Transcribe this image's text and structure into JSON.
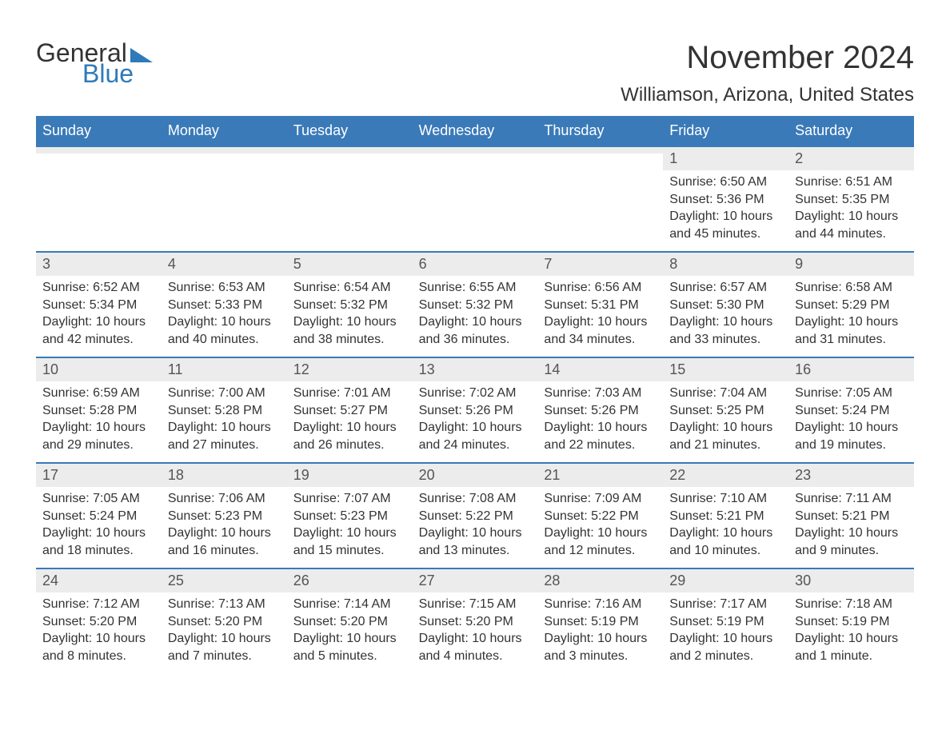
{
  "logo": {
    "word1": "General",
    "word2": "Blue"
  },
  "title": "November 2024",
  "location": "Williamson, Arizona, United States",
  "colors": {
    "header_bg": "#3a7ab8",
    "header_text": "#ffffff",
    "strip_bg": "#ececec",
    "text": "#333333",
    "logo_blue": "#2f7ab8"
  },
  "day_names": [
    "Sunday",
    "Monday",
    "Tuesday",
    "Wednesday",
    "Thursday",
    "Friday",
    "Saturday"
  ],
  "weeks": [
    [
      null,
      null,
      null,
      null,
      null,
      {
        "n": "1",
        "sunrise": "Sunrise: 6:50 AM",
        "sunset": "Sunset: 5:36 PM",
        "daylight": "Daylight: 10 hours and 45 minutes."
      },
      {
        "n": "2",
        "sunrise": "Sunrise: 6:51 AM",
        "sunset": "Sunset: 5:35 PM",
        "daylight": "Daylight: 10 hours and 44 minutes."
      }
    ],
    [
      {
        "n": "3",
        "sunrise": "Sunrise: 6:52 AM",
        "sunset": "Sunset: 5:34 PM",
        "daylight": "Daylight: 10 hours and 42 minutes."
      },
      {
        "n": "4",
        "sunrise": "Sunrise: 6:53 AM",
        "sunset": "Sunset: 5:33 PM",
        "daylight": "Daylight: 10 hours and 40 minutes."
      },
      {
        "n": "5",
        "sunrise": "Sunrise: 6:54 AM",
        "sunset": "Sunset: 5:32 PM",
        "daylight": "Daylight: 10 hours and 38 minutes."
      },
      {
        "n": "6",
        "sunrise": "Sunrise: 6:55 AM",
        "sunset": "Sunset: 5:32 PM",
        "daylight": "Daylight: 10 hours and 36 minutes."
      },
      {
        "n": "7",
        "sunrise": "Sunrise: 6:56 AM",
        "sunset": "Sunset: 5:31 PM",
        "daylight": "Daylight: 10 hours and 34 minutes."
      },
      {
        "n": "8",
        "sunrise": "Sunrise: 6:57 AM",
        "sunset": "Sunset: 5:30 PM",
        "daylight": "Daylight: 10 hours and 33 minutes."
      },
      {
        "n": "9",
        "sunrise": "Sunrise: 6:58 AM",
        "sunset": "Sunset: 5:29 PM",
        "daylight": "Daylight: 10 hours and 31 minutes."
      }
    ],
    [
      {
        "n": "10",
        "sunrise": "Sunrise: 6:59 AM",
        "sunset": "Sunset: 5:28 PM",
        "daylight": "Daylight: 10 hours and 29 minutes."
      },
      {
        "n": "11",
        "sunrise": "Sunrise: 7:00 AM",
        "sunset": "Sunset: 5:28 PM",
        "daylight": "Daylight: 10 hours and 27 minutes."
      },
      {
        "n": "12",
        "sunrise": "Sunrise: 7:01 AM",
        "sunset": "Sunset: 5:27 PM",
        "daylight": "Daylight: 10 hours and 26 minutes."
      },
      {
        "n": "13",
        "sunrise": "Sunrise: 7:02 AM",
        "sunset": "Sunset: 5:26 PM",
        "daylight": "Daylight: 10 hours and 24 minutes."
      },
      {
        "n": "14",
        "sunrise": "Sunrise: 7:03 AM",
        "sunset": "Sunset: 5:26 PM",
        "daylight": "Daylight: 10 hours and 22 minutes."
      },
      {
        "n": "15",
        "sunrise": "Sunrise: 7:04 AM",
        "sunset": "Sunset: 5:25 PM",
        "daylight": "Daylight: 10 hours and 21 minutes."
      },
      {
        "n": "16",
        "sunrise": "Sunrise: 7:05 AM",
        "sunset": "Sunset: 5:24 PM",
        "daylight": "Daylight: 10 hours and 19 minutes."
      }
    ],
    [
      {
        "n": "17",
        "sunrise": "Sunrise: 7:05 AM",
        "sunset": "Sunset: 5:24 PM",
        "daylight": "Daylight: 10 hours and 18 minutes."
      },
      {
        "n": "18",
        "sunrise": "Sunrise: 7:06 AM",
        "sunset": "Sunset: 5:23 PM",
        "daylight": "Daylight: 10 hours and 16 minutes."
      },
      {
        "n": "19",
        "sunrise": "Sunrise: 7:07 AM",
        "sunset": "Sunset: 5:23 PM",
        "daylight": "Daylight: 10 hours and 15 minutes."
      },
      {
        "n": "20",
        "sunrise": "Sunrise: 7:08 AM",
        "sunset": "Sunset: 5:22 PM",
        "daylight": "Daylight: 10 hours and 13 minutes."
      },
      {
        "n": "21",
        "sunrise": "Sunrise: 7:09 AM",
        "sunset": "Sunset: 5:22 PM",
        "daylight": "Daylight: 10 hours and 12 minutes."
      },
      {
        "n": "22",
        "sunrise": "Sunrise: 7:10 AM",
        "sunset": "Sunset: 5:21 PM",
        "daylight": "Daylight: 10 hours and 10 minutes."
      },
      {
        "n": "23",
        "sunrise": "Sunrise: 7:11 AM",
        "sunset": "Sunset: 5:21 PM",
        "daylight": "Daylight: 10 hours and 9 minutes."
      }
    ],
    [
      {
        "n": "24",
        "sunrise": "Sunrise: 7:12 AM",
        "sunset": "Sunset: 5:20 PM",
        "daylight": "Daylight: 10 hours and 8 minutes."
      },
      {
        "n": "25",
        "sunrise": "Sunrise: 7:13 AM",
        "sunset": "Sunset: 5:20 PM",
        "daylight": "Daylight: 10 hours and 7 minutes."
      },
      {
        "n": "26",
        "sunrise": "Sunrise: 7:14 AM",
        "sunset": "Sunset: 5:20 PM",
        "daylight": "Daylight: 10 hours and 5 minutes."
      },
      {
        "n": "27",
        "sunrise": "Sunrise: 7:15 AM",
        "sunset": "Sunset: 5:20 PM",
        "daylight": "Daylight: 10 hours and 4 minutes."
      },
      {
        "n": "28",
        "sunrise": "Sunrise: 7:16 AM",
        "sunset": "Sunset: 5:19 PM",
        "daylight": "Daylight: 10 hours and 3 minutes."
      },
      {
        "n": "29",
        "sunrise": "Sunrise: 7:17 AM",
        "sunset": "Sunset: 5:19 PM",
        "daylight": "Daylight: 10 hours and 2 minutes."
      },
      {
        "n": "30",
        "sunrise": "Sunrise: 7:18 AM",
        "sunset": "Sunset: 5:19 PM",
        "daylight": "Daylight: 10 hours and 1 minute."
      }
    ]
  ]
}
